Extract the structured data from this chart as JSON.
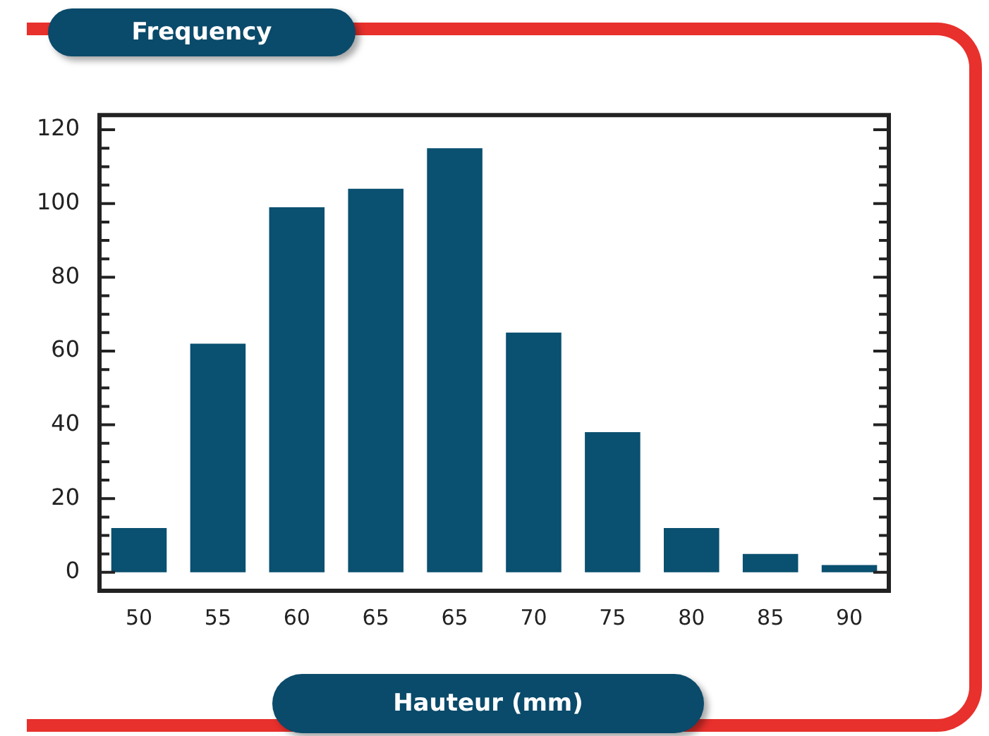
{
  "chart_data": {
    "type": "bar",
    "title": "Frequency",
    "xlabel": "Hauteur (mm)",
    "categories": [
      "50",
      "55",
      "60",
      "65",
      "65",
      "70",
      "75",
      "80",
      "85",
      "90"
    ],
    "values": [
      12,
      62,
      99,
      104,
      115,
      65,
      38,
      12,
      5,
      2
    ],
    "color": "#0a5070",
    "ylim": [
      -5,
      124
    ],
    "yticks": [
      0,
      {
        "value": 5,
        "label": null
      },
      {
        "value": 10,
        "label": null
      },
      {
        "value": 15,
        "label": null
      },
      20,
      {
        "value": 25,
        "label": null
      },
      {
        "value": 30,
        "label": null
      },
      {
        "value": 35,
        "label": null
      },
      40,
      {
        "value": 45,
        "label": null
      },
      {
        "value": 50,
        "label": null
      },
      {
        "value": 55,
        "label": null
      },
      60,
      {
        "value": 65,
        "label": null
      },
      {
        "value": 70,
        "label": null
      },
      {
        "value": 75,
        "label": null
      },
      80,
      {
        "value": 85,
        "label": null
      },
      {
        "value": 90,
        "label": null
      },
      {
        "value": 95,
        "label": null
      },
      100,
      {
        "value": 105,
        "label": null
      },
      {
        "value": 110,
        "label": null
      },
      {
        "value": 115,
        "label": null
      },
      120
    ]
  }
}
